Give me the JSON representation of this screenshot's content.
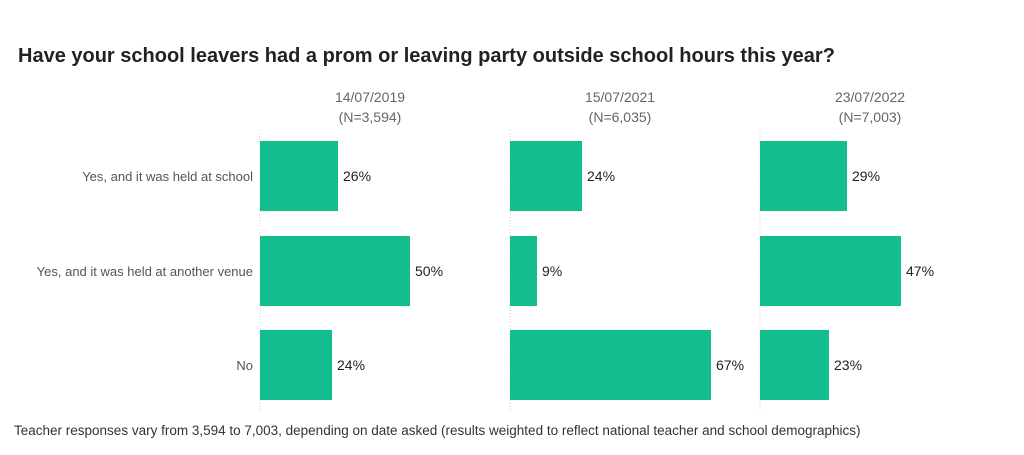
{
  "chart_data": {
    "type": "bar",
    "orientation": "horizontal",
    "title": "Have your school leavers had a prom or leaving party outside school hours this year?",
    "categories": [
      "Yes, and it was held at school",
      "Yes, and it was held at another venue",
      "No"
    ],
    "panels": [
      {
        "date": "14/07/2019",
        "n": "(N=3,594)",
        "values": [
          26,
          50,
          24
        ]
      },
      {
        "date": "15/07/2021",
        "n": "(N=6,035)",
        "values": [
          24,
          9,
          67
        ]
      },
      {
        "date": "23/07/2022",
        "n": "(N=7,003)",
        "values": [
          29,
          47,
          23
        ]
      }
    ],
    "value_suffix": "%",
    "bar_color": "#14bd8e",
    "grid": false,
    "footnote": "Teacher responses vary from 3,594 to 7,003, depending on date asked (results weighted to reflect national teacher and school demographics)"
  }
}
